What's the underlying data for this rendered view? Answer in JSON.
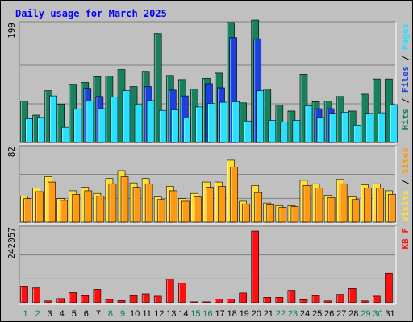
{
  "chart_data": {
    "type": "bar",
    "title": "Daily usage for March 2025",
    "categories": [
      "1",
      "2",
      "3",
      "4",
      "5",
      "6",
      "7",
      "8",
      "9",
      "10",
      "11",
      "12",
      "13",
      "14",
      "15",
      "16",
      "17",
      "18",
      "19",
      "20",
      "21",
      "22",
      "23",
      "24",
      "25",
      "26",
      "27",
      "28",
      "29",
      "30",
      "31"
    ],
    "weekend_days": [
      "1",
      "2",
      "8",
      "9",
      "15",
      "16",
      "22",
      "23",
      "29",
      "30"
    ],
    "colors": {
      "title": "#0000ff",
      "hits": "#17805c",
      "files": "#1a40e0",
      "pages": "#28e0ff",
      "visits": "#ffe030",
      "sites": "#ff9a10",
      "kbytes": "#ff1010",
      "weekday_label": "#000000",
      "weekend_label": "#00805c",
      "background": "#c0c0c0"
    },
    "panels": [
      {
        "id": "hits-files-pages",
        "ymax_label": "199",
        "ymax": 199,
        "legend": [
          {
            "text": "Hits",
            "color": "#17805c"
          },
          {
            "text": " / ",
            "color": "#000000"
          },
          {
            "text": "Files",
            "color": "#1a40e0"
          },
          {
            "text": " / ",
            "color": "#000000"
          },
          {
            "text": "Pages",
            "color": "#28e0ff"
          }
        ],
        "series": [
          {
            "name": "Hits",
            "color": "#17805c",
            "values": [
              71,
              47,
              89,
              66,
              100,
              103,
              113,
              114,
              125,
              96,
              122,
              187,
              115,
              108,
              92,
              110,
              119,
              206,
              68,
              210,
              92,
              64,
              54,
              117,
              70,
              71,
              79,
              54,
              83,
              109,
              109
            ]
          },
          {
            "name": "Files",
            "color": "#1a40e0",
            "values": [
              0,
              0,
              0,
              0,
              0,
              93,
              79,
              0,
              0,
              0,
              96,
              0,
              90,
              80,
              0,
              101,
              94,
              180,
              0,
              178,
              0,
              0,
              0,
              0,
              58,
              58,
              0,
              0,
              0,
              0,
              0
            ]
          },
          {
            "name": "Pages",
            "color": "#28e0ff",
            "values": [
              41,
              43,
              80,
              26,
              57,
              71,
              58,
              78,
              89,
              65,
              72,
              55,
              56,
              42,
              61,
              67,
              69,
              70,
              37,
              89,
              38,
              35,
              38,
              63,
              43,
              50,
              52,
              30,
              50,
              51,
              65
            ]
          }
        ]
      },
      {
        "id": "visits-sites",
        "ymax_label": "82",
        "ymax": 82,
        "legend": [
          {
            "text": "Visits",
            "color": "#ffe030"
          },
          {
            "text": " / ",
            "color": "#000000"
          },
          {
            "text": "Sites",
            "color": "#ff9a10"
          }
        ],
        "series": [
          {
            "name": "Visits",
            "color": "#ffe030",
            "values": [
              30,
              39,
              52,
              27,
              36,
              40,
              33,
              50,
              59,
              45,
              50,
              29,
              41,
              27,
              33,
              46,
              46,
              71,
              24,
              42,
              22,
              19,
              19,
              48,
              44,
              31,
              49,
              29,
              43,
              44,
              36
            ]
          },
          {
            "name": "Sites",
            "color": "#ff9a10",
            "values": [
              27,
              35,
              46,
              25,
              32,
              36,
              30,
              44,
              52,
              40,
              44,
              26,
              36,
              24,
              29,
              40,
              41,
              63,
              21,
              34,
              20,
              17,
              18,
              42,
              39,
              28,
              44,
              26,
              39,
              39,
              32
            ]
          }
        ]
      },
      {
        "id": "kbytes",
        "ymax_label": "242057",
        "ymax": 242057,
        "legend": [
          {
            "text": "KB F",
            "color": "#ff1010"
          }
        ],
        "series": [
          {
            "name": "KB F",
            "color": "#ff1010",
            "values": [
              56000,
              50000,
              6000,
              14000,
              34000,
              24000,
              45000,
              11000,
              7000,
              24000,
              30000,
              22000,
              80000,
              66000,
              3000,
              3000,
              12000,
              12000,
              33000,
              242057,
              18000,
              18000,
              42000,
              10000,
              24000,
              6000,
              28000,
              48000,
              6000,
              22000,
              100000
            ]
          }
        ]
      }
    ]
  }
}
